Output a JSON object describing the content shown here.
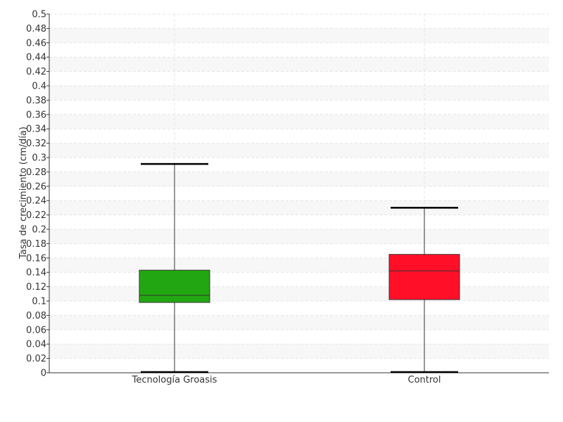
{
  "chart_data": {
    "type": "boxplot",
    "title": "",
    "xlabel": "",
    "ylabel": "Tasa de crecimiento (cm/día)",
    "ylim": [
      0,
      0.5
    ],
    "ytick_step": 0.02,
    "grid": "on (dashed)",
    "categories": [
      "Tecnología Groasis",
      "Control"
    ],
    "boxes": [
      {
        "category": "Tecnología Groasis",
        "min": 0,
        "q1": 0.098,
        "median": 0.108,
        "q3": 0.143,
        "max": 0.291,
        "color": "#22a712"
      },
      {
        "category": "Control",
        "min": 0,
        "q1": 0.102,
        "median": 0.142,
        "q3": 0.165,
        "max": 0.23,
        "color": "#ff0f28"
      }
    ]
  }
}
